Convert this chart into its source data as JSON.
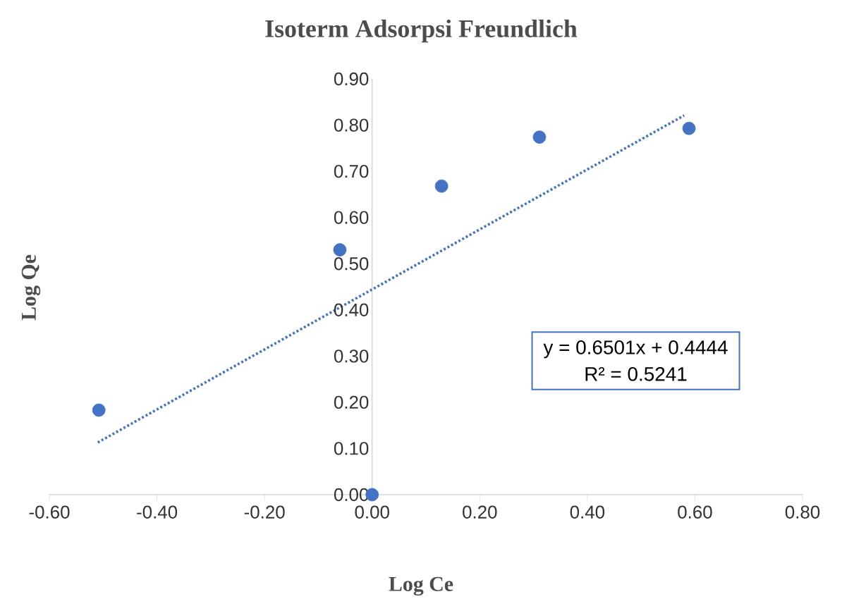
{
  "chart_data": {
    "type": "scatter",
    "title": "Isoterm Adsorpsi Freundlich",
    "xlabel": "Log Ce",
    "ylabel": "Log Qe",
    "annotations": [
      "y = 0.6501x + 0.4444",
      "R² = 0.5241"
    ],
    "series": [
      {
        "color": "#4472c4",
        "marker": "circle",
        "x": [
          -0.508,
          -0.06,
          0.0,
          0.129,
          0.311,
          0.589
        ],
        "values": [
          0.183,
          0.53,
          0.0,
          0.668,
          0.774,
          0.793
        ]
      },
      {
        "type": "line",
        "color": "#4472c4",
        "line_style": "dotted",
        "marker": "none",
        "x": [
          -0.51,
          0.58
        ],
        "values": [
          0.113,
          0.821
        ]
      }
    ],
    "xlim": [
      -0.6,
      0.8
    ],
    "ylim": [
      0,
      0.9
    ],
    "xticks": [
      {
        "value": -0.6,
        "label": "-0.60"
      },
      {
        "value": -0.4,
        "label": "-0.40"
      },
      {
        "value": -0.2,
        "label": "-0.20"
      },
      {
        "value": 0,
        "label": "0.00"
      },
      {
        "value": 0.2,
        "label": "0.20"
      },
      {
        "value": 0.4,
        "label": "0.40"
      },
      {
        "value": 0.6,
        "label": "0.60"
      },
      {
        "value": 0.8,
        "label": "0.80"
      }
    ],
    "yticks": [
      {
        "value": 0,
        "label": "0.00"
      },
      {
        "value": 0.1,
        "label": "0.10"
      },
      {
        "value": 0.2,
        "label": "0.20"
      },
      {
        "value": 0.3,
        "label": "0.30"
      },
      {
        "value": 0.4,
        "label": "0.40"
      },
      {
        "value": 0.5,
        "label": "0.50"
      },
      {
        "value": 0.6,
        "label": "0.60"
      },
      {
        "value": 0.7,
        "label": "0.70"
      },
      {
        "value": 0.8,
        "label": "0.80"
      },
      {
        "value": 0.9,
        "label": "0.90"
      }
    ]
  }
}
